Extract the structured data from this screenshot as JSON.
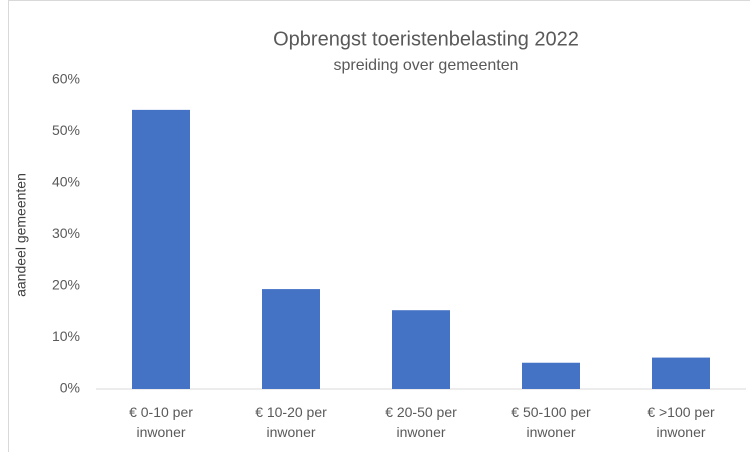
{
  "chart_data": {
    "type": "bar",
    "title": "Opbrengst toeristenbelasting 2022",
    "subtitle": "spreiding over gemeenten",
    "y_label": "aandeel gemeenten",
    "categories": [
      "€ 0-10 per inwoner",
      "€ 10-20 per inwoner",
      "€ 20-50 per inwoner",
      "€ 50-100 per inwoner",
      "€ >100 per inwoner"
    ],
    "values": [
      54.2,
      19.4,
      15.3,
      5.1,
      6.1
    ],
    "color": "#4472c4",
    "ylim": [
      0,
      60
    ],
    "yticks": [
      {
        "value": 0,
        "label": "0%"
      },
      {
        "value": 10,
        "label": "10%"
      },
      {
        "value": 20,
        "label": "20%"
      },
      {
        "value": 30,
        "label": "30%"
      },
      {
        "value": 40,
        "label": "40%"
      },
      {
        "value": 50,
        "label": "50%"
      },
      {
        "value": 60,
        "label": "60%"
      }
    ],
    "grid": false
  }
}
